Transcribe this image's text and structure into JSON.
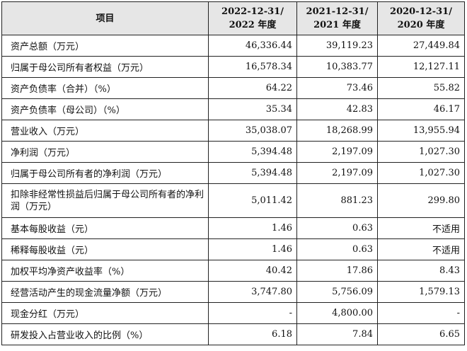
{
  "header": {
    "item": "项目",
    "col1_l1": "2022-12-31/",
    "col1_l2": "2022 年度",
    "col2_l1": "2021-12-31/",
    "col2_l2": "2021 年度",
    "col3_l1": "2020-12-31/",
    "col3_l2": "2020 年度"
  },
  "rows": [
    {
      "label": "资产总额（万元）",
      "v2022": "46,336.44",
      "v2021": "39,119.23",
      "v2020": "27,449.84"
    },
    {
      "label": "归属于母公司所有者权益（万元）",
      "v2022": "16,578.34",
      "v2021": "10,383.77",
      "v2020": "12,127.11"
    },
    {
      "label": "资产负债率（合并）（%）",
      "v2022": "64.22",
      "v2021": "73.46",
      "v2020": "55.82"
    },
    {
      "label": "资产负债率（母公司）（%）",
      "v2022": "35.34",
      "v2021": "42.83",
      "v2020": "46.17"
    },
    {
      "label": "营业收入（万元）",
      "v2022": "35,038.07",
      "v2021": "18,268.99",
      "v2020": "13,955.94"
    },
    {
      "label": "净利润（万元）",
      "v2022": "5,394.48",
      "v2021": "2,197.09",
      "v2020": "1,027.30"
    },
    {
      "label": "归属于母公司所有者的净利润（万元）",
      "v2022": "5,394.48",
      "v2021": "2,197.09",
      "v2020": "1,027.30"
    },
    {
      "label": "扣除非经常性损益后归属于母公司所有者的净利润（万元）",
      "v2022": "5,011.42",
      "v2021": "881.23",
      "v2020": "299.80"
    },
    {
      "label": "基本每股收益（元）",
      "v2022": "1.46",
      "v2021": "0.63",
      "v2020": "不适用"
    },
    {
      "label": "稀释每股收益（元）",
      "v2022": "1.46",
      "v2021": "0.63",
      "v2020": "不适用"
    },
    {
      "label": "加权平均净资产收益率（%）",
      "v2022": "40.42",
      "v2021": "17.86",
      "v2020": "8.43"
    },
    {
      "label": "经营活动产生的现金流量净额（万元）",
      "v2022": "3,747.80",
      "v2021": "5,756.09",
      "v2020": "1,579.13"
    },
    {
      "label": "现金分红（万元）",
      "v2022": "-",
      "v2021": "4,800.00",
      "v2020": "-"
    },
    {
      "label": "研发投入占营业收入的比例（%）",
      "v2022": "6.18",
      "v2021": "7.84",
      "v2020": "6.65"
    }
  ]
}
